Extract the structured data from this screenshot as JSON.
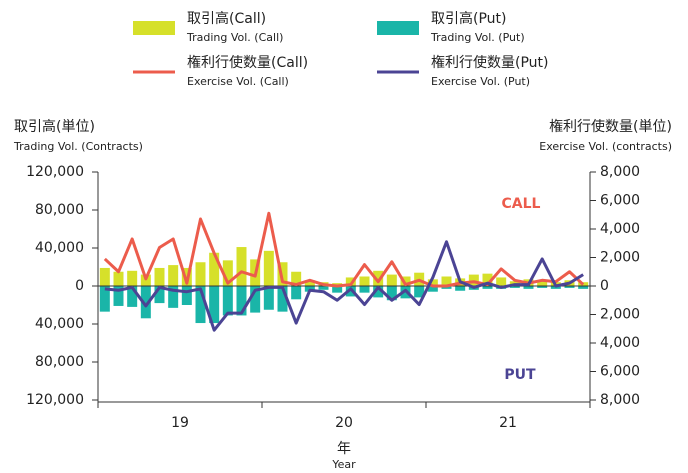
{
  "chart_data": {
    "type": "bar-line",
    "axis_title_left": "取引高(単位)",
    "axis_subtitle_left": "Trading Vol. (Contracts)",
    "axis_title_right": "権利行使数量(単位)",
    "axis_subtitle_right": "Exercise Vol. (contracts)",
    "x_title": "年",
    "x_subtitle": "Year",
    "year_labels": [
      "19",
      "20",
      "21"
    ],
    "categories": [
      null,
      null,
      null,
      null,
      null,
      null,
      null,
      null,
      null,
      null,
      null,
      null,
      null,
      null,
      null,
      null,
      null,
      null,
      null,
      null,
      null,
      null,
      null,
      null,
      null,
      null,
      null,
      null,
      null,
      null,
      null,
      null,
      null,
      null,
      null,
      null
    ],
    "ylim": [
      -120000,
      120000
    ],
    "yticks": [
      {
        "value": 120000,
        "label": "120,000"
      },
      {
        "value": 80000,
        "label": "80,000"
      },
      {
        "value": 40000,
        "label": "40,000"
      },
      0,
      {
        "value": -40000,
        "label": "40,000"
      },
      {
        "value": -80000,
        "label": "80,000"
      },
      {
        "value": -120000,
        "label": "120,000"
      }
    ],
    "y2lim": [
      -8000,
      8000
    ],
    "y2ticks": [
      {
        "value": 8000,
        "label": "8,000"
      },
      {
        "value": 6000,
        "label": "6,000"
      },
      {
        "value": 4000,
        "label": "4,000"
      },
      {
        "value": 2000,
        "label": "2,000"
      },
      0,
      {
        "value": -2000,
        "label": "2,000"
      },
      {
        "value": -4000,
        "label": "4,000"
      },
      {
        "value": -6000,
        "label": "6,000"
      },
      {
        "value": -8000,
        "label": "8,000"
      }
    ],
    "annotations": [
      {
        "text": "CALL",
        "color": "#ec5c4c"
      },
      {
        "text": "PUT",
        "color": "#4b4494"
      }
    ],
    "series": [
      {
        "name": "取引高(Call)",
        "subname": "Trading Vol. (Call)",
        "kind": "bar",
        "color": "#d6e02a",
        "values": [
          19000,
          15000,
          16000,
          12000,
          19000,
          22000,
          19000,
          25000,
          35000,
          27000,
          41000,
          28000,
          37000,
          25000,
          15000,
          6000,
          4000,
          3000,
          9000,
          10000,
          16000,
          12000,
          10000,
          14000,
          7000,
          10000,
          8000,
          12000,
          13000,
          9000,
          5000,
          7000,
          5000,
          4000,
          6000,
          4000
        ]
      },
      {
        "name": "取引高(Put)",
        "subname": "Trading Vol. (Put)",
        "kind": "bar",
        "color": "#1ab5a8",
        "values": [
          -27000,
          -21000,
          -22000,
          -34000,
          -18000,
          -23000,
          -20000,
          -39000,
          -39000,
          -31000,
          -31000,
          -28000,
          -25000,
          -27000,
          -14000,
          -6000,
          -4000,
          -7000,
          -11000,
          -7000,
          -12000,
          -15000,
          -13000,
          -12000,
          -6000,
          -3000,
          -5000,
          -4000,
          -3000,
          -3000,
          -2000,
          -3000,
          -2000,
          -3000,
          -2000,
          -3000
        ]
      },
      {
        "name": "権利行使数量(Call)",
        "subname": "Exercise Vol. (Call)",
        "kind": "line",
        "axis": "y2",
        "color": "#ec5c4c",
        "values": [
          1900,
          1000,
          3300,
          500,
          2700,
          3300,
          200,
          4700,
          2300,
          200,
          1000,
          700,
          5100,
          300,
          100,
          400,
          100,
          0,
          100,
          1500,
          300,
          1700,
          100,
          400,
          0,
          0,
          200,
          300,
          100,
          1200,
          400,
          200,
          400,
          300,
          1000,
          100
        ]
      },
      {
        "name": "権利行使数量(Put)",
        "subname": "Exercise Vol. (Put)",
        "kind": "line",
        "axis": "y2",
        "color": "#4b4494",
        "values": [
          -200,
          -300,
          -100,
          -1400,
          -100,
          -300,
          -400,
          -200,
          -3100,
          -1900,
          -1900,
          -300,
          -100,
          -100,
          -2600,
          -300,
          -400,
          -1000,
          -200,
          -1300,
          -100,
          -1000,
          -300,
          -1300,
          600,
          3100,
          300,
          -100,
          200,
          -100,
          100,
          100,
          1900,
          0,
          200,
          800
        ]
      }
    ]
  }
}
